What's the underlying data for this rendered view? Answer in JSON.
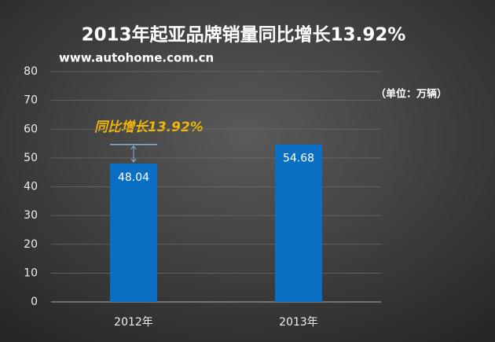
{
  "chart_data": {
    "type": "bar",
    "title": "2013年起亚品牌销量同比增长13.92%",
    "subtitle": "www.autohome.com.cn",
    "unit_label": "（单位：万辆）",
    "annotation": "同比增长13.92%",
    "categories": [
      "2012年",
      "2013年"
    ],
    "values": [
      48.04,
      54.68
    ],
    "color": "#0a6fc2",
    "ylim": [
      0,
      80
    ],
    "yticks": [
      0,
      10,
      20,
      30,
      40,
      50,
      60,
      70,
      80
    ],
    "grid": true
  }
}
